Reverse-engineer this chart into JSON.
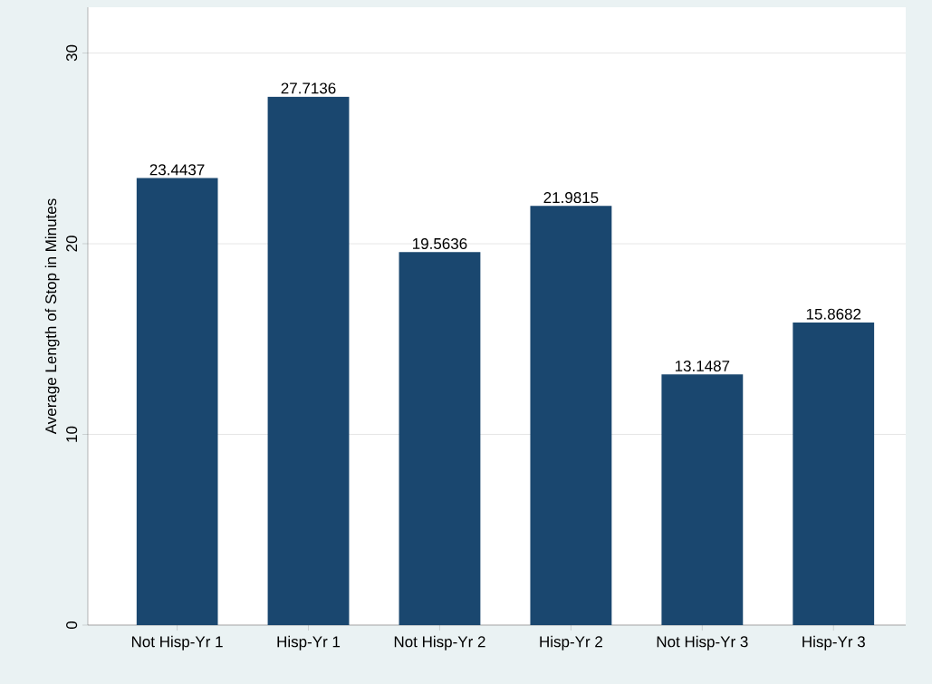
{
  "chart_data": {
    "type": "bar",
    "ylabel": "Average Length of Stop in Minutes",
    "categories": [
      "Not Hisp-Yr 1",
      "Hisp-Yr 1",
      "Not Hisp-Yr 2",
      "Hisp-Yr 2",
      "Not Hisp-Yr 3",
      "Hisp-Yr 3"
    ],
    "values": [
      23.4437,
      27.7136,
      19.5636,
      21.9815,
      13.1487,
      15.8682
    ],
    "color": "#1a476f",
    "ylim": [
      0,
      32.4
    ],
    "yticks": [
      0,
      10,
      20,
      30
    ],
    "grid": "y",
    "data_labels": true
  }
}
